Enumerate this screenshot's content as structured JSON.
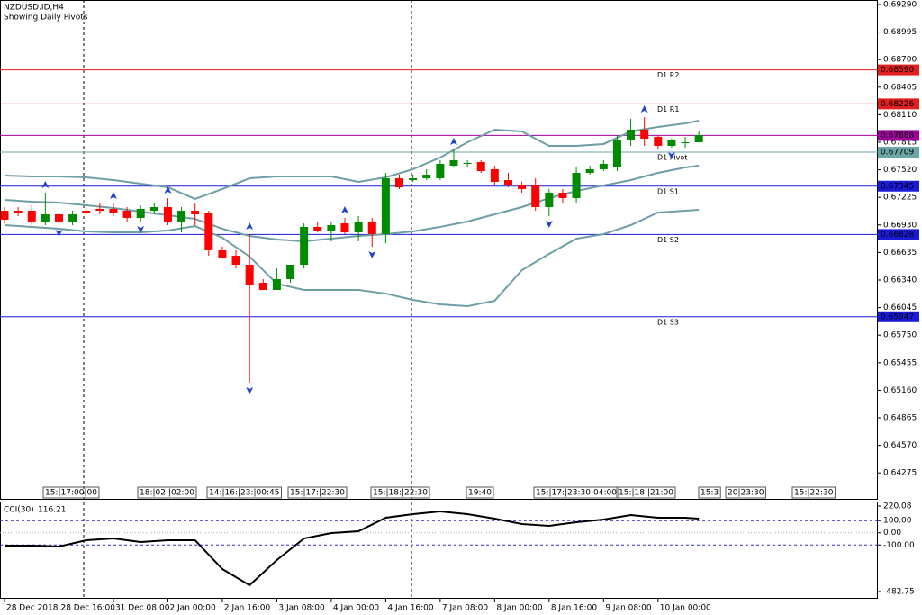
{
  "chart_data": {
    "type": "candlestick",
    "title": "NZDUSD.ID,H4",
    "subtitle": "Showing Daily Pivots",
    "up_color": "#008a00",
    "down_color": "#ff0000",
    "open": [
      0.67082,
      0.67082,
      0.67082,
      0.66967,
      0.67044,
      0.66967,
      0.67082,
      0.67102,
      0.67102,
      0.67082,
      0.67005,
      0.67082,
      0.67121,
      0.66967,
      0.67082,
      0.67063,
      0.66658,
      0.666,
      0.66504,
      0.66311,
      0.66234,
      0.6635,
      0.66504,
      0.66909,
      0.6687,
      0.66947,
      0.66851,
      0.66967,
      0.66832,
      0.67429,
      0.6741,
      0.67429,
      0.67429,
      0.67564,
      0.67593,
      0.67603,
      0.67526,
      0.6741,
      0.67352,
      0.67352,
      0.67121,
      0.67275,
      0.67217,
      0.67487,
      0.67526,
      0.67545,
      0.67834,
      0.6795,
      0.67873,
      0.67776,
      0.67815,
      0.67815
    ],
    "high": [
      0.67121,
      0.67121,
      0.6714,
      0.67275,
      0.67082,
      0.67082,
      0.67121,
      0.67159,
      0.67159,
      0.67121,
      0.6714,
      0.67159,
      0.67217,
      0.67121,
      0.67159,
      0.67082,
      0.66697,
      0.66658,
      0.66832,
      0.6635,
      0.66465,
      0.66504,
      0.66947,
      0.66967,
      0.66967,
      0.67005,
      0.67024,
      0.67005,
      0.67487,
      0.67468,
      0.67468,
      0.67526,
      0.67622,
      0.67738,
      0.67622,
      0.67622,
      0.67564,
      0.67487,
      0.67391,
      0.67429,
      0.67314,
      0.67314,
      0.67545,
      0.67564,
      0.67622,
      0.67892,
      0.68066,
      0.68085,
      0.67892,
      0.67853,
      0.67873,
      0.67931
    ],
    "low": [
      0.66947,
      0.67024,
      0.66928,
      0.66928,
      0.66928,
      0.66928,
      0.67044,
      0.67044,
      0.67024,
      0.66967,
      0.66967,
      0.67044,
      0.66928,
      0.66851,
      0.66928,
      0.666,
      0.66581,
      0.66465,
      0.65241,
      0.66234,
      0.66234,
      0.66311,
      0.66465,
      0.66851,
      0.66755,
      0.66832,
      0.66755,
      0.66697,
      0.66735,
      0.67314,
      0.67391,
      0.6741,
      0.6741,
      0.67545,
      0.67545,
      0.67487,
      0.67352,
      0.67333,
      0.67275,
      0.67082,
      0.67024,
      0.67159,
      0.67159,
      0.67468,
      0.67506,
      0.67506,
      0.67776,
      0.67776,
      0.67738,
      0.67757,
      0.67757,
      0.67815
    ],
    "close": [
      0.66986,
      0.67063,
      0.66967,
      0.67044,
      0.66967,
      0.67044,
      0.67063,
      0.67082,
      0.67063,
      0.67005,
      0.67102,
      0.67121,
      0.66967,
      0.67082,
      0.67044,
      0.66658,
      0.66581,
      0.66504,
      0.66292,
      0.66234,
      0.6635,
      0.66504,
      0.66909,
      0.6687,
      0.66928,
      0.66851,
      0.66967,
      0.66832,
      0.67429,
      0.67333,
      0.67429,
      0.67468,
      0.67584,
      0.67622,
      0.67593,
      0.67506,
      0.67391,
      0.67352,
      0.67314,
      0.67121,
      0.67275,
      0.67217,
      0.67487,
      0.67526,
      0.67584,
      0.67834,
      0.6795,
      0.67853,
      0.67776,
      0.67834,
      0.67815,
      0.67892
    ],
    "xlim": [
      -0.33,
      64.15
    ],
    "ylim": [
      0.63988,
      0.69338
    ],
    "xticks": [
      {
        "value": 0,
        "label": "28 Dec 2018"
      },
      {
        "value": 4,
        "label": "28 Dec 16:00"
      },
      {
        "value": 8,
        "label": "31 Dec 08:00"
      },
      {
        "value": 12,
        "label": "2 Jan 00:00"
      },
      {
        "value": 16,
        "label": "2 Jan 16:00"
      },
      {
        "value": 20,
        "label": "3 Jan 08:00"
      },
      {
        "value": 24,
        "label": "4 Jan 00:00"
      },
      {
        "value": 28,
        "label": "4 Jan 16:00"
      },
      {
        "value": 32,
        "label": "7 Jan 08:00"
      },
      {
        "value": 36,
        "label": "8 Jan 00:00"
      },
      {
        "value": 40,
        "label": "8 Jan 16:00"
      },
      {
        "value": 44,
        "label": "9 Jan 08:00"
      },
      {
        "value": 48,
        "label": "10 Jan 00:00"
      }
    ],
    "yticks": [
      {
        "value": 0.6929,
        "label": "0.69290"
      },
      0.68995,
      {
        "value": 0.687,
        "label": "0.68700"
      },
      0.68405,
      {
        "value": 0.6811,
        "label": "0.68110"
      },
      0.67815,
      {
        "value": 0.6752,
        "label": "0.67520"
      },
      0.67225,
      {
        "value": 0.6693,
        "label": "0.66930"
      },
      0.66635,
      {
        "value": 0.6634,
        "label": "0.66340"
      },
      0.66045,
      {
        "value": 0.6575,
        "label": "0.65750"
      },
      0.65455,
      {
        "value": 0.6516,
        "label": "0.65160"
      },
      0.64865,
      {
        "value": 0.6457,
        "label": "0.64570"
      },
      0.64275
    ],
    "bands": {
      "color": "#6e9ea6",
      "x": [
        0,
        2,
        4,
        6,
        8,
        10,
        12,
        14,
        16,
        18,
        20,
        22,
        24,
        26,
        28,
        30,
        32,
        34,
        36,
        38,
        40,
        42,
        44,
        46,
        48,
        50,
        51
      ],
      "upper": [
        0.67458,
        0.67449,
        0.67449,
        0.67439,
        0.6741,
        0.67371,
        0.67333,
        0.67208,
        0.67314,
        0.67429,
        0.67449,
        0.67449,
        0.67449,
        0.67391,
        0.67439,
        0.67526,
        0.67651,
        0.67815,
        0.6795,
        0.67931,
        0.67776,
        0.67776,
        0.67796,
        0.67931,
        0.67979,
        0.68017,
        0.68046
      ],
      "middle": [
        0.67198,
        0.67179,
        0.67169,
        0.6714,
        0.67111,
        0.67073,
        0.67034,
        0.66995,
        0.66889,
        0.66812,
        0.66774,
        0.66755,
        0.66783,
        0.66812,
        0.66832,
        0.66861,
        0.66909,
        0.66967,
        0.67044,
        0.67121,
        0.67217,
        0.67294,
        0.67352,
        0.6741,
        0.67487,
        0.67545,
        0.67564
      ],
      "lower": [
        0.66928,
        0.66909,
        0.66889,
        0.66861,
        0.66851,
        0.66851,
        0.6687,
        0.66918,
        0.66793,
        0.66591,
        0.66301,
        0.66234,
        0.66234,
        0.66234,
        0.66195,
        0.66128,
        0.6608,
        0.6606,
        0.66118,
        0.66446,
        0.6662,
        0.66783,
        0.66832,
        0.66928,
        0.67063,
        0.67082,
        0.67092
      ]
    },
    "pivots": [
      {
        "name": "D1 R2",
        "value": 0.6859,
        "value_label": "0.68590",
        "color": "#e02020"
      },
      {
        "name": "D1 R1",
        "value": 0.68226,
        "value_label": "0.68226",
        "color": "#e02020"
      },
      {
        "name": "D1 Pivot",
        "value": 0.67709,
        "value_label": "0.67709",
        "color": "#6aa6a6"
      },
      {
        "name": "D1 S1",
        "value": 0.67345,
        "value_label": "0.67345",
        "color": "#1a1ad8"
      },
      {
        "name": "D1 S2",
        "value": 0.66828,
        "value_label": "0.66828",
        "color": "#1a1ad8"
      },
      {
        "name": "D1 S3",
        "value": 0.65947,
        "value_label": "0.65947",
        "color": "#1a1ad8"
      }
    ],
    "current_price": {
      "value": 0.67888,
      "value_label": "0.67888",
      "color": "#a000a0"
    },
    "fractals_up": [
      3,
      8,
      12,
      18,
      25,
      33,
      47
    ],
    "fractals_down": [
      4,
      10,
      18,
      27,
      40,
      49
    ],
    "fractal_color": "#2244cc",
    "time_boxes": [
      "15:|17:00|00",
      "18:|02:|02:00",
      "14:|16:|23:|00:45",
      "15:|17:|22:30",
      "15:|18:|22:30",
      "19:40",
      "15:|17:|23:30|04:00",
      "15:|18:|21:00",
      "15:3",
      "20|23:30",
      "15:|22:30"
    ],
    "cci": {
      "name": "CCI(30)",
      "color": "#000000",
      "x": [
        0,
        2,
        4,
        6,
        8,
        10,
        12,
        14,
        16,
        18,
        20,
        22,
        24,
        26,
        28,
        30,
        32,
        34,
        36,
        38,
        40,
        42,
        44,
        46,
        48,
        50,
        51
      ],
      "values": [
        -105.5,
        -105.5,
        -112.9,
        -61.1,
        -46.3,
        -75.9,
        -61.1,
        -61.1,
        -297.9,
        -431.1,
        -223.9,
        -46.3,
        -1.9,
        12.9,
        123.9,
        153.5,
        175.7,
        153.5,
        116.5,
        72.1,
        57.3,
        86.9,
        109.1,
        146.1,
        123.9,
        123.9,
        116.21
      ],
      "ylim": [
        -482.75,
        220.08
      ],
      "yticks": [
        220.08,
        {
          "value": 100,
          "label": "100.00"
        },
        {
          "value": 0,
          "label": "0.00"
        },
        {
          "value": -100,
          "label": "-100.00"
        },
        -482.75
      ]
    }
  }
}
